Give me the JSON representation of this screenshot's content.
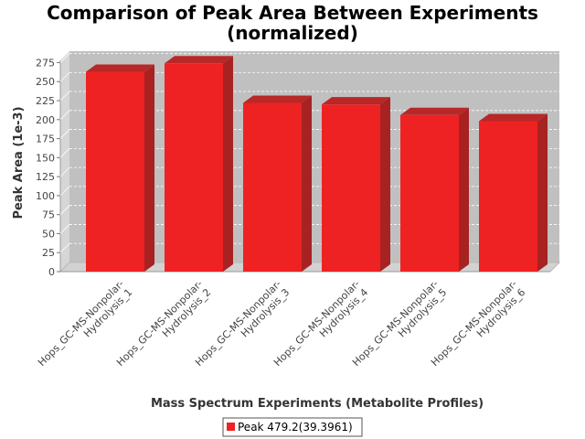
{
  "chart_data": {
    "type": "bar",
    "title_line1": "Comparison of Peak Area Between Experiments",
    "title_line2": "(normalized)",
    "xlabel": "Mass Spectrum Experiments (Metabolite Profiles)",
    "ylabel": "Peak Area (1e-3)",
    "ylim": [
      0,
      290
    ],
    "yticks": [
      0,
      25,
      50,
      75,
      100,
      125,
      150,
      175,
      200,
      225,
      250,
      275
    ],
    "grid": true,
    "legend_position": "bottom",
    "categories": [
      [
        "Hops_GC-MS-Nonpolar-",
        "Hydrolysis_1"
      ],
      [
        "Hops_GC-MS-Nonpolar-",
        "Hydrolysis_2"
      ],
      [
        "Hops_GC-MS-Nonpolar-",
        "Hydrolysis_3"
      ],
      [
        "Hops_GC-MS-Nonpolar-",
        "Hydrolysis_4"
      ],
      [
        "Hops_GC-MS-Nonpolar-",
        "Hydrolysis_5"
      ],
      [
        "Hops_GC-MS-Nonpolar-",
        "Hydrolysis_6"
      ]
    ],
    "series": [
      {
        "name": "Peak 479.2(39.3961)",
        "color": "#ee2222",
        "values": [
          263,
          274,
          222,
          220,
          206,
          198
        ]
      }
    ]
  }
}
